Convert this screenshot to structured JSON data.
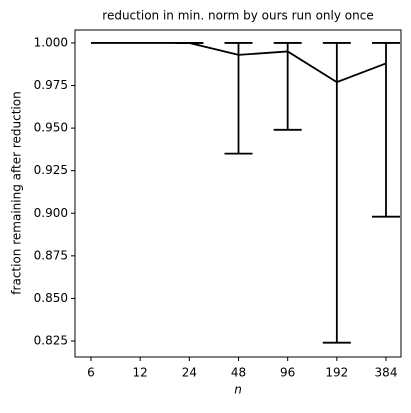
{
  "chart_data": {
    "type": "line",
    "title": "reduction in min. norm by ours run only once",
    "x_label": "n",
    "y_label": "fraction remaining after reduction",
    "categories": [
      "6",
      "12",
      "24",
      "48",
      "96",
      "192",
      "384"
    ],
    "series": [
      {
        "color": "#000000",
        "values": [
          1.0,
          1.0,
          1.0,
          0.993,
          0.995,
          0.977,
          0.988
        ],
        "error_lower": [
          null,
          null,
          1.0,
          0.935,
          0.949,
          0.824,
          0.898
        ],
        "error_upper": [
          null,
          null,
          1.0,
          1.0,
          1.0,
          1.0,
          1.0
        ]
      }
    ],
    "ylim": [
      0.8156,
      1.0076
    ],
    "yticks": [
      {
        "value": 0.825,
        "label": "0.825"
      },
      {
        "value": 0.85,
        "label": "0.850"
      },
      {
        "value": 0.875,
        "label": "0.875"
      },
      {
        "value": 0.9,
        "label": "0.900"
      },
      {
        "value": 0.925,
        "label": "0.925"
      },
      {
        "value": 0.95,
        "label": "0.950"
      },
      {
        "value": 0.975,
        "label": "0.975"
      },
      {
        "value": 1.0,
        "label": "1.000"
      }
    ]
  }
}
